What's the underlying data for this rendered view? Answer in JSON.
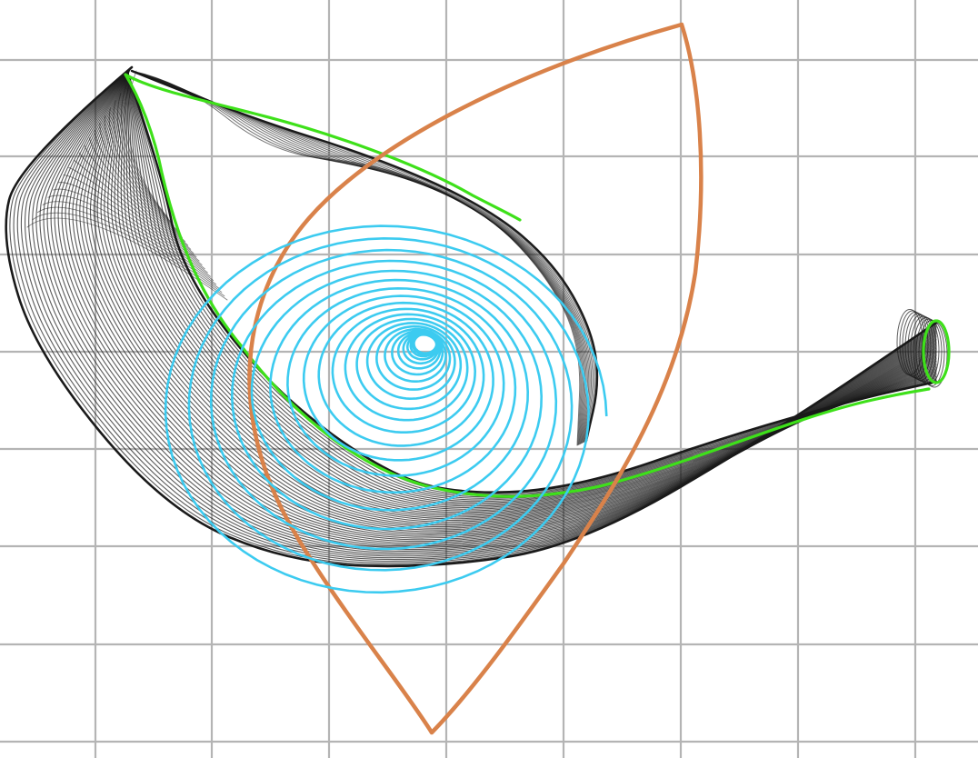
{
  "figure": {
    "background": "#ffffff",
    "grid": {
      "visible": true,
      "color": "#b4b4b4"
    },
    "colors": {
      "tube_mesh": "#1a1a1a",
      "tube_outline": "#3ee01a",
      "teardrop": "#d9824a",
      "spiral": "#3ccbf0"
    }
  }
}
